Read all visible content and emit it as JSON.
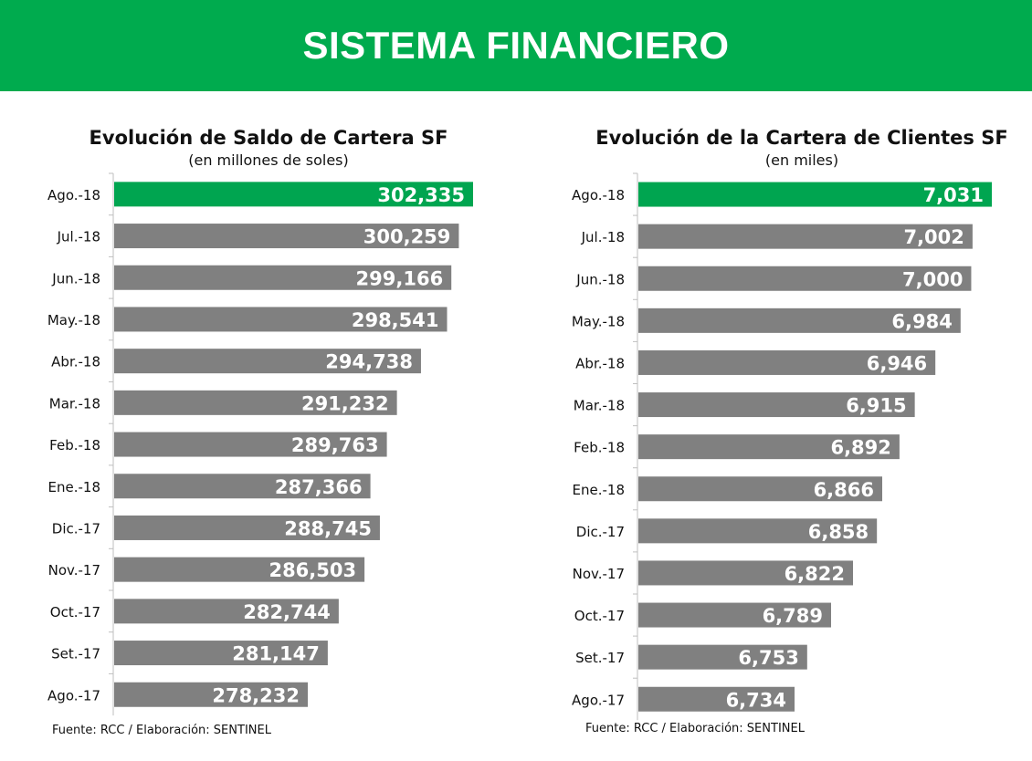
{
  "banner": {
    "title": "SISTEMA FINANCIERO"
  },
  "colors": {
    "banner": "#00ab4e",
    "highlight": "#00a550",
    "bar": "#808080"
  },
  "chart_data": [
    {
      "type": "bar",
      "orientation": "horizontal",
      "title": "Evolución de Saldo de Cartera SF",
      "subtitle": "(en millones de soles)",
      "categories": [
        "Ago.-18",
        "Jul.-18",
        "Jun.-18",
        "May.-18",
        "Abr.-18",
        "Mar.-18",
        "Feb.-18",
        "Ene.-18",
        "Dic.-17",
        "Nov.-17",
        "Oct.-17",
        "Set.-17",
        "Ago.-17"
      ],
      "values": [
        302335,
        300259,
        299166,
        298541,
        294738,
        291232,
        289763,
        287366,
        288745,
        286503,
        282744,
        281147,
        278232
      ],
      "value_labels": [
        "302,335",
        "300,259",
        "299,166",
        "298,541",
        "294,738",
        "291,232",
        "289,763",
        "287,366",
        "288,745",
        "286,503",
        "282,744",
        "281,147",
        "278,232"
      ],
      "highlight_index": 0,
      "source": "Fuente: RCC / Elaboración: SENTINEL"
    },
    {
      "type": "bar",
      "orientation": "horizontal",
      "title": "Evolución de la Cartera de Clientes SF",
      "subtitle": "(en miles)",
      "categories": [
        "Ago.-18",
        "Jul.-18",
        "Jun.-18",
        "May.-18",
        "Abr.-18",
        "Mar.-18",
        "Feb.-18",
        "Ene.-18",
        "Dic.-17",
        "Nov.-17",
        "Oct.-17",
        "Set.-17",
        "Ago.-17"
      ],
      "values": [
        7031,
        7002,
        7000,
        6984,
        6946,
        6915,
        6892,
        6866,
        6858,
        6822,
        6789,
        6753,
        6734
      ],
      "value_labels": [
        "7,031",
        "7,002",
        "7,000",
        "6,984",
        "6,946",
        "6,915",
        "6,892",
        "6,866",
        "6,858",
        "6,822",
        "6,789",
        "6,753",
        "6,734"
      ],
      "highlight_index": 0,
      "source": "Fuente: RCC / Elaboración: SENTINEL"
    }
  ]
}
